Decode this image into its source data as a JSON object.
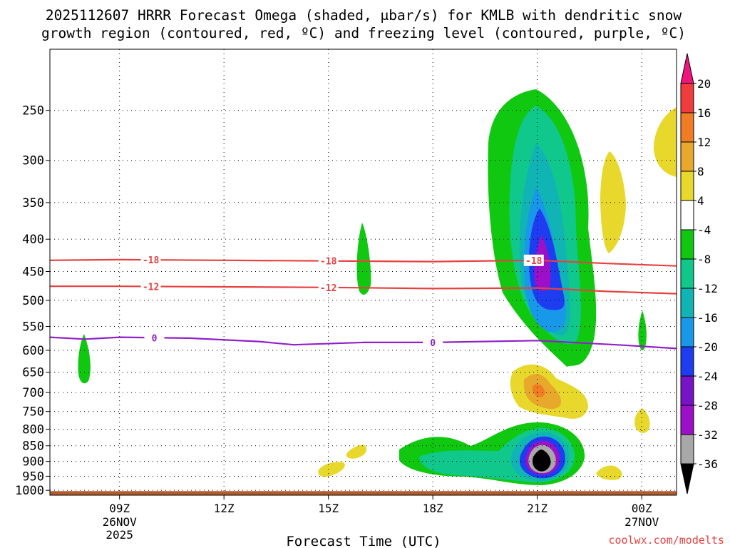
{
  "chart_data": {
    "type": "heatmap",
    "title": {
      "line1": "2025112607 HRRR Forecast Omega (shaded, μbar/s) for KMLB with dendritic snow",
      "line2": "growth region (contoured, red, ºC) and freezing level (contoured, purple, ºC)"
    },
    "xlabel": "Forecast Time (UTC)",
    "ylabel": "",
    "credit": "coolwx.com/modelts",
    "x_ticks": [
      {
        "label": "09Z",
        "sub1": "26NOV",
        "sub2": "2025",
        "hour": 9
      },
      {
        "label": "12Z",
        "sub1": "",
        "sub2": "",
        "hour": 12
      },
      {
        "label": "15Z",
        "sub1": "",
        "sub2": "",
        "hour": 15
      },
      {
        "label": "18Z",
        "sub1": "",
        "sub2": "",
        "hour": 18
      },
      {
        "label": "21Z",
        "sub1": "",
        "sub2": "",
        "hour": 21
      },
      {
        "label": "00Z",
        "sub1": "27NOV",
        "sub2": "",
        "hour": 24
      }
    ],
    "x_range_hours": [
      7.0,
      25.0
    ],
    "y_ticks": [
      250,
      300,
      350,
      400,
      450,
      500,
      550,
      600,
      650,
      700,
      750,
      800,
      850,
      900,
      950,
      1000
    ],
    "y_range_hpa": [
      200,
      1018
    ],
    "y_scale": "log-pressure",
    "colorbar": {
      "levels": [
        "20",
        "16",
        "12",
        "8",
        "4",
        "-4",
        "-8",
        "-12",
        "-16",
        "-20",
        "-24",
        "-28",
        "-32",
        "-36"
      ],
      "colors": [
        "#f0147c",
        "#f03c3c",
        "#f07c24",
        "#e8a82c",
        "#e8d82c",
        "#ffffff",
        "#10c810",
        "#10c88c",
        "#10b4b4",
        "#1898e8",
        "#1e3cf0",
        "#7814c8",
        "#9c10c8",
        "#a8a8a8",
        "#000000"
      ],
      "units": "μbar/s"
    },
    "dgz_contours": [
      {
        "value": -18,
        "label": "-18",
        "color": "#e84040",
        "points": [
          [
            7.0,
            432
          ],
          [
            9.0,
            431
          ],
          [
            12.0,
            432
          ],
          [
            15.0,
            433
          ],
          [
            18.0,
            434
          ],
          [
            21.0,
            432
          ],
          [
            23.0,
            437
          ],
          [
            25.0,
            441
          ]
        ],
        "label_hours": [
          9.9,
          15.0,
          20.9
        ]
      },
      {
        "value": -12,
        "label": "-12",
        "color": "#e84040",
        "points": [
          [
            7.0,
            475
          ],
          [
            9.0,
            475
          ],
          [
            12.0,
            476
          ],
          [
            15.0,
            477
          ],
          [
            18.0,
            479
          ],
          [
            21.0,
            478
          ],
          [
            23.0,
            484
          ],
          [
            25.0,
            488
          ]
        ],
        "label_hours": [
          9.9,
          15.0
        ]
      }
    ],
    "freezing_level": {
      "value": 0,
      "label": "0",
      "color": "#9020c8",
      "points": [
        [
          7.0,
          572
        ],
        [
          8.0,
          576
        ],
        [
          9.0,
          572
        ],
        [
          11.0,
          574
        ],
        [
          13.0,
          581
        ],
        [
          14.0,
          588
        ],
        [
          16.0,
          583
        ],
        [
          18.0,
          583
        ],
        [
          21.0,
          579
        ],
        [
          22.5,
          585
        ],
        [
          23.5,
          589
        ],
        [
          25.0,
          596
        ]
      ],
      "label_hours": [
        10.0,
        18.0
      ]
    },
    "omega_regions": [
      {
        "name": "ascent-upper-plume",
        "min_value": -32,
        "center_hour": 21.0,
        "center_hpa": 450
      },
      {
        "name": "ascent-low-level-core",
        "min_value": -36,
        "center_hour": 21.0,
        "center_hpa": 930
      },
      {
        "name": "ascent-16z-cell",
        "min_value": -4,
        "center_hour": 16.0,
        "center_hpa": 440
      },
      {
        "name": "ascent-08z-cell",
        "min_value": -4,
        "center_hour": 8.0,
        "center_hpa": 660
      },
      {
        "name": "descent-21z-midlevel",
        "max_value": 12,
        "center_hour": 21.0,
        "center_hpa": 715
      },
      {
        "name": "descent-upper-right",
        "max_value": 4,
        "center_hour": 23.0,
        "center_hpa": 350
      },
      {
        "name": "descent-top-right",
        "max_value": 4,
        "center_hour": 25.0,
        "center_hpa": 290
      }
    ],
    "surface_band": {
      "color": "#b45a2c",
      "top_hpa": 1003
    }
  }
}
